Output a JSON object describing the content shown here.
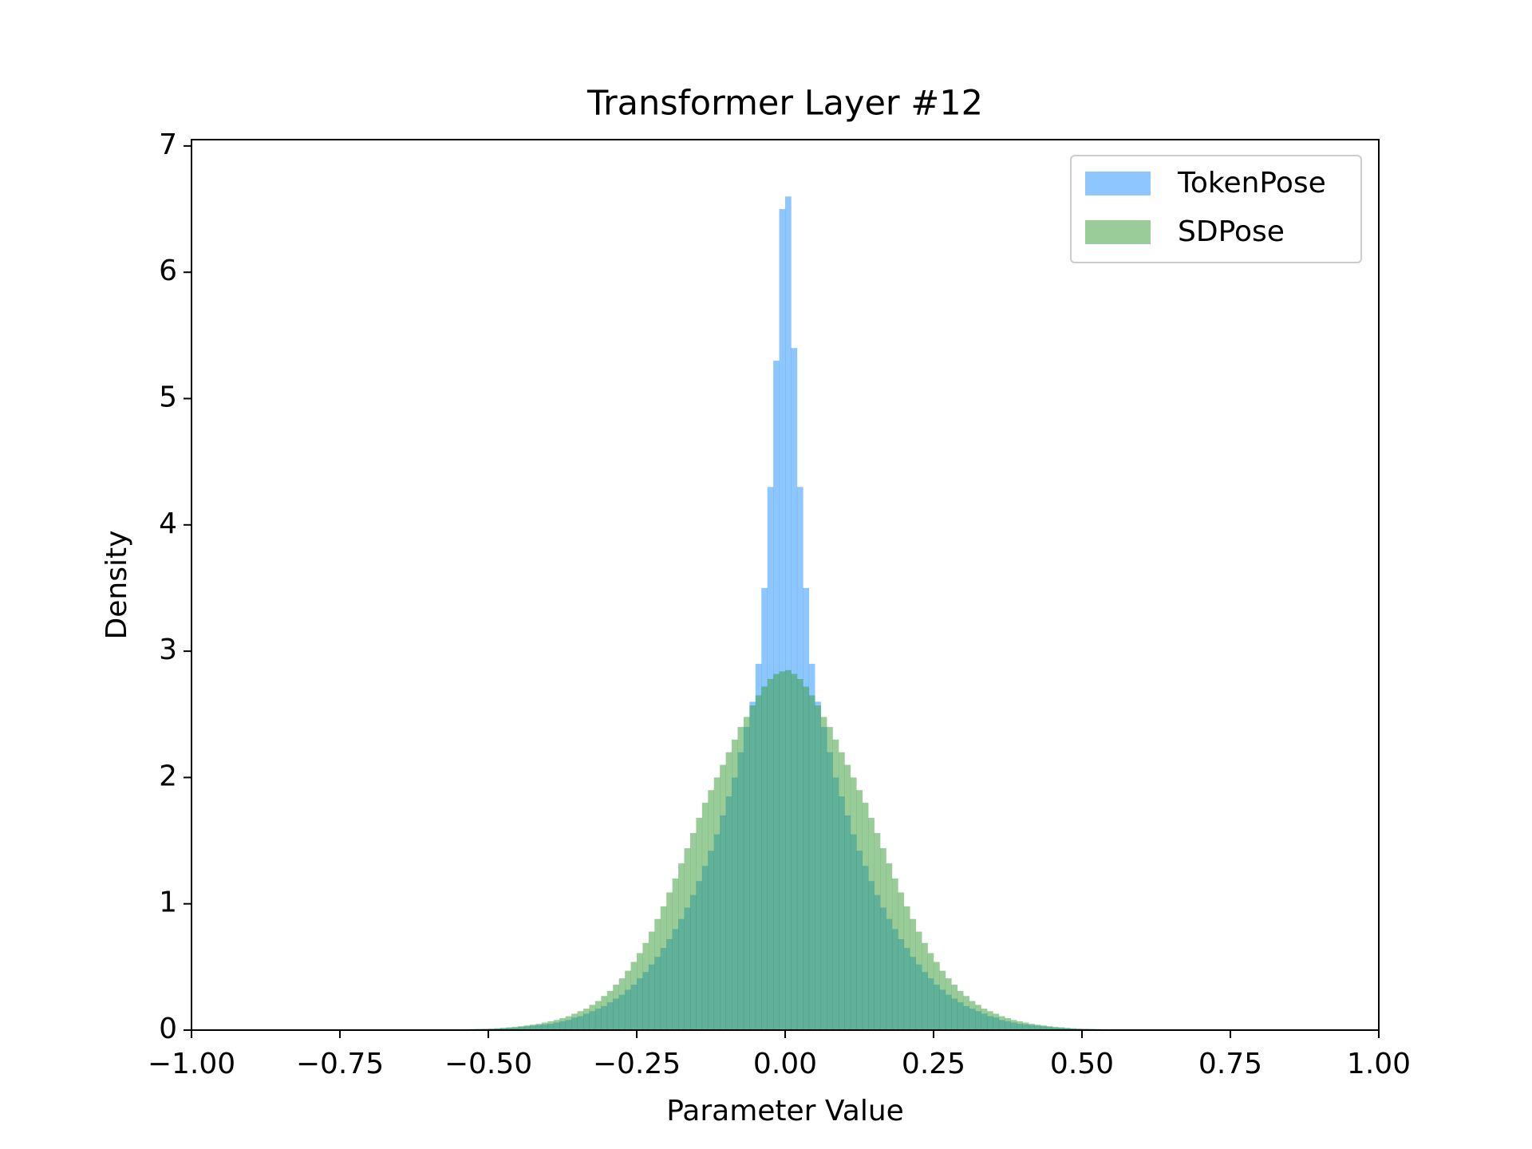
{
  "chart_data": {
    "type": "histogram",
    "title": "Transformer Layer #12",
    "xlabel": "Parameter Value",
    "ylabel": "Density",
    "xlim": [
      -1,
      1
    ],
    "ylim": [
      0,
      7.05
    ],
    "xticks": [
      {
        "value": -1,
        "label": "−1.00"
      },
      {
        "value": -0.75,
        "label": "−0.75"
      },
      {
        "value": -0.5,
        "label": "−0.50"
      },
      {
        "value": -0.25,
        "label": "−0.25"
      },
      {
        "value": 0,
        "label": "0.00"
      },
      {
        "value": 0.25,
        "label": "0.25"
      },
      {
        "value": 0.5,
        "label": "0.50"
      },
      {
        "value": 0.75,
        "label": "0.75"
      },
      {
        "value": 1,
        "label": "1.00"
      }
    ],
    "yticks": [
      0,
      1,
      2,
      3,
      4,
      5,
      6,
      7
    ],
    "legend": "upper right",
    "alpha": 0.5,
    "bins": [
      -0.6,
      -0.59,
      -0.58,
      -0.57,
      -0.56,
      -0.55,
      -0.54,
      -0.53,
      -0.52,
      -0.51,
      -0.5,
      -0.49,
      -0.48,
      -0.47,
      -0.46,
      -0.45,
      -0.44,
      -0.43,
      -0.42,
      -0.41,
      -0.4,
      -0.39,
      -0.38,
      -0.37,
      -0.36,
      -0.35,
      -0.34,
      -0.33,
      -0.32,
      -0.31,
      -0.3,
      -0.29,
      -0.28,
      -0.27,
      -0.26,
      -0.25,
      -0.24,
      -0.23,
      -0.22,
      -0.21,
      -0.2,
      -0.19,
      -0.18,
      -0.17,
      -0.16,
      -0.15,
      -0.14,
      -0.13,
      -0.12,
      -0.11,
      -0.1,
      -0.09,
      -0.08,
      -0.07,
      -0.06,
      -0.05,
      -0.04,
      -0.03,
      -0.02,
      -0.01,
      0,
      0.01,
      0.02,
      0.03,
      0.04,
      0.05,
      0.06,
      0.07,
      0.08,
      0.09,
      0.1,
      0.11,
      0.12,
      0.13,
      0.14,
      0.15,
      0.16,
      0.17,
      0.18,
      0.19,
      0.2,
      0.21,
      0.22,
      0.23,
      0.24,
      0.25,
      0.26,
      0.27,
      0.28,
      0.29,
      0.3,
      0.31,
      0.32,
      0.33,
      0.34,
      0.35,
      0.36,
      0.37,
      0.38,
      0.39,
      0.4,
      0.41,
      0.42,
      0.43,
      0.44,
      0.45,
      0.46,
      0.47,
      0.48,
      0.49,
      0.5,
      0.51,
      0.52,
      0.53,
      0.54,
      0.55,
      0.56,
      0.57,
      0.58,
      0.59,
      0.6
    ],
    "series": [
      {
        "name": "TokenPose",
        "color": "#1e90ff",
        "values": [
          0.002,
          0.003,
          0.003,
          0.004,
          0.004,
          0.005,
          0.006,
          0.007,
          0.008,
          0.009,
          0.01,
          0.012,
          0.015,
          0.018,
          0.02,
          0.025,
          0.03,
          0.035,
          0.04,
          0.045,
          0.05,
          0.06,
          0.07,
          0.08,
          0.1,
          0.11,
          0.13,
          0.15,
          0.17,
          0.19,
          0.22,
          0.25,
          0.28,
          0.32,
          0.36,
          0.41,
          0.46,
          0.52,
          0.58,
          0.65,
          0.72,
          0.8,
          0.88,
          0.97,
          1.07,
          1.18,
          1.3,
          1.42,
          1.55,
          1.7,
          1.85,
          2.0,
          2.2,
          2.4,
          2.6,
          2.9,
          3.5,
          4.3,
          5.3,
          6.5,
          6.6,
          5.4,
          4.3,
          3.5,
          2.9,
          2.6,
          2.4,
          2.2,
          2.0,
          1.85,
          1.7,
          1.55,
          1.42,
          1.3,
          1.18,
          1.07,
          0.97,
          0.88,
          0.8,
          0.72,
          0.65,
          0.58,
          0.52,
          0.46,
          0.41,
          0.36,
          0.32,
          0.28,
          0.25,
          0.22,
          0.19,
          0.17,
          0.15,
          0.13,
          0.11,
          0.1,
          0.08,
          0.07,
          0.06,
          0.05,
          0.045,
          0.04,
          0.035,
          0.03,
          0.025,
          0.02,
          0.018,
          0.015,
          0.012,
          0.01,
          0.009,
          0.008,
          0.007,
          0.006,
          0.005,
          0.004,
          0.004,
          0.003,
          0.003,
          0.002
        ]
      },
      {
        "name": "SDPose",
        "color": "#339933",
        "values": [
          0.002,
          0.003,
          0.003,
          0.004,
          0.005,
          0.006,
          0.007,
          0.008,
          0.009,
          0.01,
          0.012,
          0.015,
          0.018,
          0.022,
          0.026,
          0.031,
          0.037,
          0.043,
          0.05,
          0.06,
          0.07,
          0.08,
          0.095,
          0.11,
          0.13,
          0.15,
          0.17,
          0.2,
          0.23,
          0.27,
          0.31,
          0.36,
          0.41,
          0.47,
          0.54,
          0.61,
          0.69,
          0.78,
          0.88,
          0.98,
          1.09,
          1.2,
          1.32,
          1.44,
          1.56,
          1.68,
          1.8,
          1.9,
          2.0,
          2.1,
          2.2,
          2.3,
          2.4,
          2.48,
          2.57,
          2.65,
          2.72,
          2.78,
          2.82,
          2.84,
          2.85,
          2.82,
          2.78,
          2.72,
          2.65,
          2.57,
          2.48,
          2.4,
          2.3,
          2.2,
          2.1,
          2.0,
          1.9,
          1.8,
          1.68,
          1.56,
          1.44,
          1.32,
          1.2,
          1.09,
          0.98,
          0.88,
          0.78,
          0.69,
          0.61,
          0.54,
          0.47,
          0.41,
          0.36,
          0.31,
          0.27,
          0.23,
          0.2,
          0.17,
          0.15,
          0.13,
          0.11,
          0.095,
          0.08,
          0.07,
          0.06,
          0.05,
          0.043,
          0.037,
          0.031,
          0.026,
          0.022,
          0.018,
          0.015,
          0.012,
          0.01,
          0.009,
          0.008,
          0.007,
          0.006,
          0.005,
          0.004,
          0.003,
          0.003,
          0.002
        ]
      }
    ]
  }
}
